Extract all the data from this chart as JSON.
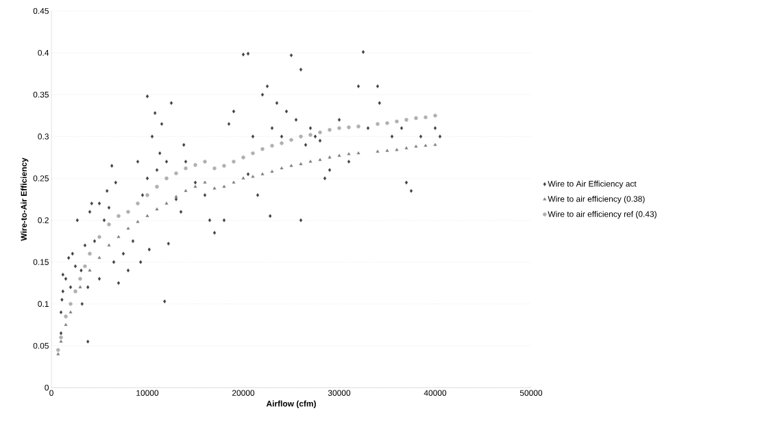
{
  "chart_data": {
    "type": "scatter",
    "xlabel": "Airflow (cfm)",
    "ylabel": "Wire-to-Air Efficiency",
    "xlim": [
      0,
      50000
    ],
    "ylim": [
      0,
      0.45
    ],
    "xticks": [
      0,
      10000,
      20000,
      30000,
      40000,
      50000
    ],
    "yticks": [
      0,
      0.05,
      0.1,
      0.15,
      0.2,
      0.25,
      0.3,
      0.35,
      0.4,
      0.45
    ],
    "grid": "y",
    "legend": "right",
    "series": [
      {
        "name": "Wire to Air Efficiency act",
        "color": "#404040",
        "marker": "diamond",
        "x": [
          1000,
          1000,
          1100,
          1200,
          1200,
          1500,
          1800,
          2000,
          2200,
          2500,
          2700,
          3100,
          3200,
          3500,
          3800,
          3800,
          4000,
          4200,
          4500,
          5000,
          5000,
          5500,
          5800,
          6000,
          6300,
          6500,
          6700,
          7000,
          7500,
          8000,
          8500,
          9000,
          9300,
          9500,
          10000,
          10000,
          10200,
          10500,
          10800,
          11000,
          11300,
          11500,
          11800,
          12000,
          12200,
          12500,
          13000,
          13500,
          13800,
          14000,
          15000,
          16000,
          16500,
          17000,
          18000,
          18500,
          19000,
          20000,
          20500,
          20500,
          21000,
          21500,
          22000,
          22500,
          22800,
          23000,
          23500,
          24000,
          24500,
          25000,
          25500,
          26000,
          26000,
          26500,
          27000,
          27500,
          28000,
          28500,
          29000,
          30000,
          31000,
          32000,
          32500,
          33000,
          34000,
          34200,
          35500,
          36500,
          37000,
          37500,
          38500,
          40000,
          40500
        ],
        "values": [
          0.065,
          0.09,
          0.105,
          0.115,
          0.135,
          0.13,
          0.155,
          0.12,
          0.16,
          0.145,
          0.2,
          0.14,
          0.1,
          0.17,
          0.055,
          0.12,
          0.21,
          0.22,
          0.175,
          0.22,
          0.13,
          0.2,
          0.235,
          0.215,
          0.265,
          0.15,
          0.245,
          0.125,
          0.16,
          0.14,
          0.175,
          0.27,
          0.15,
          0.23,
          0.348,
          0.25,
          0.165,
          0.3,
          0.328,
          0.26,
          0.28,
          0.315,
          0.103,
          0.27,
          0.172,
          0.34,
          0.225,
          0.21,
          0.29,
          0.27,
          0.245,
          0.23,
          0.2,
          0.185,
          0.2,
          0.315,
          0.33,
          0.398,
          0.399,
          0.255,
          0.3,
          0.23,
          0.35,
          0.36,
          0.205,
          0.31,
          0.34,
          0.3,
          0.33,
          0.397,
          0.32,
          0.38,
          0.2,
          0.29,
          0.31,
          0.3,
          0.295,
          0.25,
          0.26,
          0.32,
          0.27,
          0.36,
          0.401,
          0.31,
          0.36,
          0.34,
          0.3,
          0.31,
          0.245,
          0.235,
          0.3,
          0.31,
          0.3
        ]
      },
      {
        "name": "Wire to air efficiency (0.38)",
        "color": "#7f7f7f",
        "marker": "triangle",
        "x": [
          700,
          1000,
          1500,
          2000,
          3000,
          4000,
          5000,
          6000,
          7000,
          8000,
          9000,
          10000,
          11000,
          12000,
          13000,
          14000,
          15000,
          16000,
          17000,
          18000,
          19000,
          20000,
          21000,
          22000,
          23000,
          24000,
          25000,
          26000,
          27000,
          28000,
          29000,
          30000,
          31000,
          32000,
          34000,
          35000,
          36000,
          37000,
          38000,
          39000,
          40000
        ],
        "values": [
          0.04,
          0.055,
          0.075,
          0.09,
          0.12,
          0.14,
          0.155,
          0.17,
          0.18,
          0.19,
          0.198,
          0.205,
          0.213,
          0.22,
          0.228,
          0.235,
          0.24,
          0.245,
          0.238,
          0.24,
          0.245,
          0.25,
          0.252,
          0.255,
          0.258,
          0.262,
          0.265,
          0.267,
          0.27,
          0.272,
          0.275,
          0.277,
          0.279,
          0.28,
          0.282,
          0.283,
          0.284,
          0.286,
          0.288,
          0.289,
          0.29
        ]
      },
      {
        "name": "Wire to air efficiency ref (0.43)",
        "color": "#b0b0b0",
        "marker": "circle",
        "x": [
          700,
          1000,
          1500,
          2000,
          2500,
          3000,
          3500,
          4000,
          5000,
          6000,
          7000,
          8000,
          9000,
          10000,
          11000,
          12000,
          13000,
          14000,
          15000,
          16000,
          17000,
          18000,
          19000,
          20000,
          21000,
          22000,
          23000,
          24000,
          25000,
          26000,
          27000,
          28000,
          29000,
          30000,
          31000,
          32000,
          34000,
          35000,
          36000,
          37000,
          38000,
          39000,
          40000
        ],
        "values": [
          0.045,
          0.06,
          0.085,
          0.1,
          0.115,
          0.13,
          0.145,
          0.16,
          0.18,
          0.195,
          0.205,
          0.21,
          0.22,
          0.23,
          0.24,
          0.25,
          0.256,
          0.262,
          0.266,
          0.27,
          0.262,
          0.265,
          0.27,
          0.275,
          0.28,
          0.285,
          0.289,
          0.292,
          0.296,
          0.3,
          0.302,
          0.305,
          0.308,
          0.31,
          0.311,
          0.312,
          0.315,
          0.316,
          0.318,
          0.32,
          0.322,
          0.323,
          0.325
        ]
      }
    ]
  }
}
